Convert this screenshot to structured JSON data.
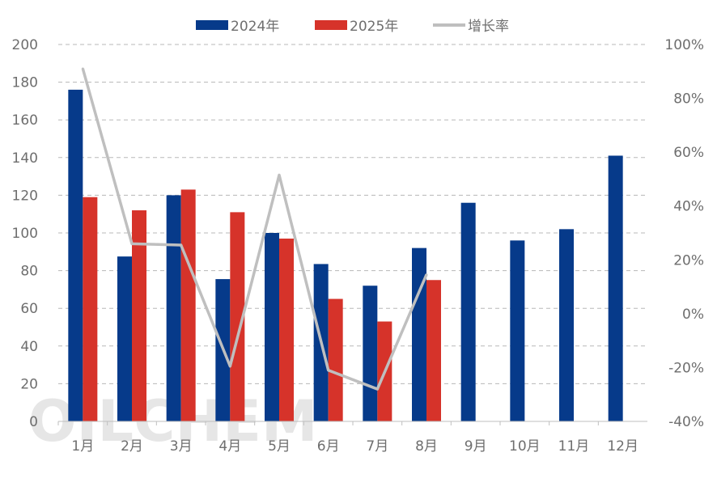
{
  "chart_data": {
    "type": "bar",
    "title": "",
    "categories": [
      "1月",
      "2月",
      "3月",
      "4月",
      "5月",
      "6月",
      "7月",
      "8月",
      "9月",
      "10月",
      "11月",
      "12月"
    ],
    "series": [
      {
        "name": "2024年",
        "type": "bar",
        "color": "#063a8a",
        "axis": "left",
        "values": [
          176,
          87.5,
          120,
          75.5,
          100,
          83.5,
          72,
          92,
          116,
          96,
          102,
          141
        ]
      },
      {
        "name": "2025年",
        "type": "bar",
        "color": "#d6332a",
        "axis": "left",
        "values": [
          119,
          112,
          123,
          111,
          97,
          65,
          53,
          75,
          null,
          null,
          null,
          null
        ]
      },
      {
        "name": "增长率",
        "type": "line",
        "color": "#bfbfbf",
        "axis": "right",
        "values": [
          91,
          26,
          25.5,
          -19.5,
          51.5,
          -21,
          -28,
          14.5,
          null,
          null,
          null,
          null
        ]
      }
    ],
    "ylim": [
      0,
      200
    ],
    "yticks": [
      "0",
      "20",
      "40",
      "60",
      "80",
      "100",
      "120",
      "140",
      "160",
      "180",
      "200"
    ],
    "y2lim": [
      -40,
      100
    ],
    "y2ticks": [
      "-40%",
      "-20%",
      "0%",
      "20%",
      "40%",
      "60%",
      "80%",
      "100%"
    ],
    "xlabel": "",
    "ylabel": "",
    "grid": true,
    "legend_position": "top-center",
    "watermark": "OILCHEM"
  }
}
